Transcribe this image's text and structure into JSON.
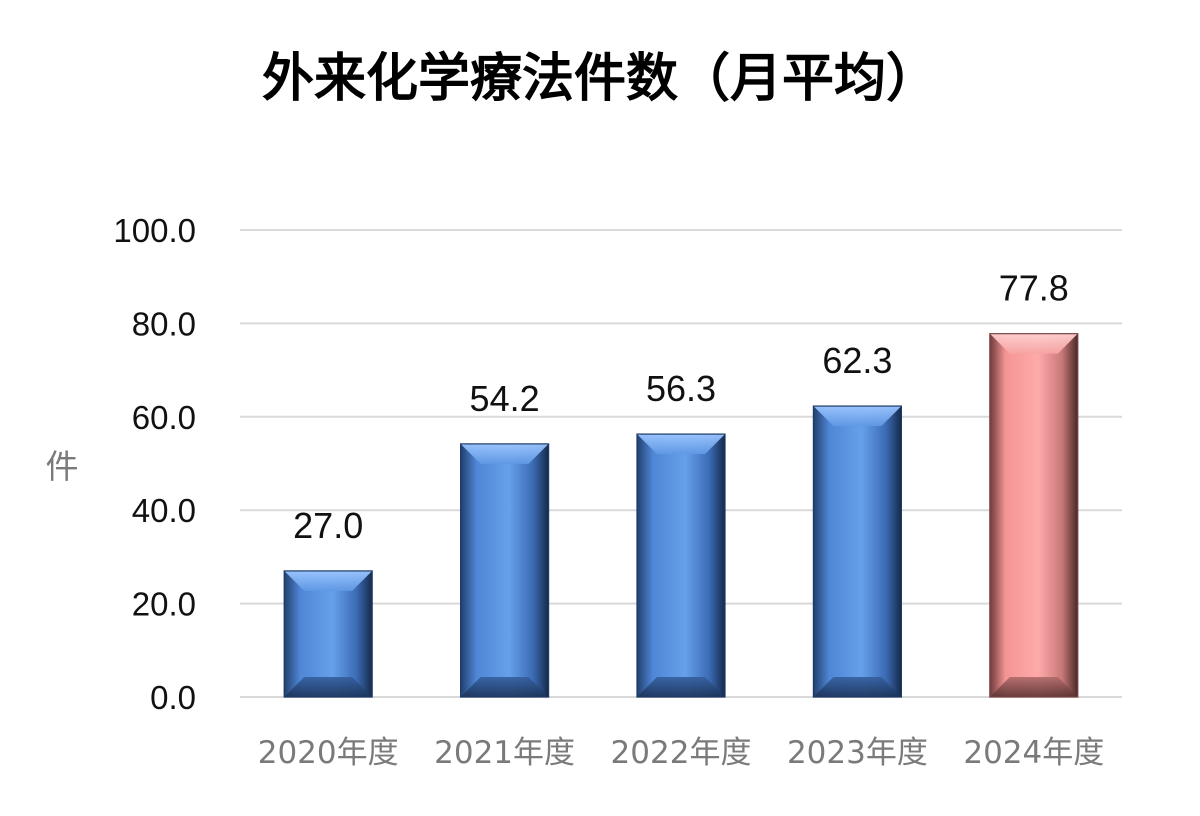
{
  "chart_data": {
    "type": "bar",
    "title": "外来化学療法件数（月平均）",
    "ylabel": "件",
    "xlabel": "",
    "categories": [
      "2020年度",
      "2021年度",
      "2022年度",
      "2023年度",
      "2024年度"
    ],
    "values": [
      27.0,
      54.2,
      56.3,
      62.3,
      77.8
    ],
    "data_labels": [
      "27.0",
      "54.2",
      "56.3",
      "62.3",
      "77.8"
    ],
    "ylim": [
      0,
      100
    ],
    "yticks": [
      0,
      20,
      40,
      60,
      80,
      100
    ],
    "ytick_labels": [
      "0.0",
      "20.0",
      "40.0",
      "60.0",
      "80.0",
      "100.0"
    ],
    "grid": true,
    "legend": "none",
    "colors": {
      "default_bar": "#4f86d6",
      "highlight_bar": "#f49595",
      "highlight_category": "2024年度",
      "gridline": "#d9d9d9"
    }
  }
}
